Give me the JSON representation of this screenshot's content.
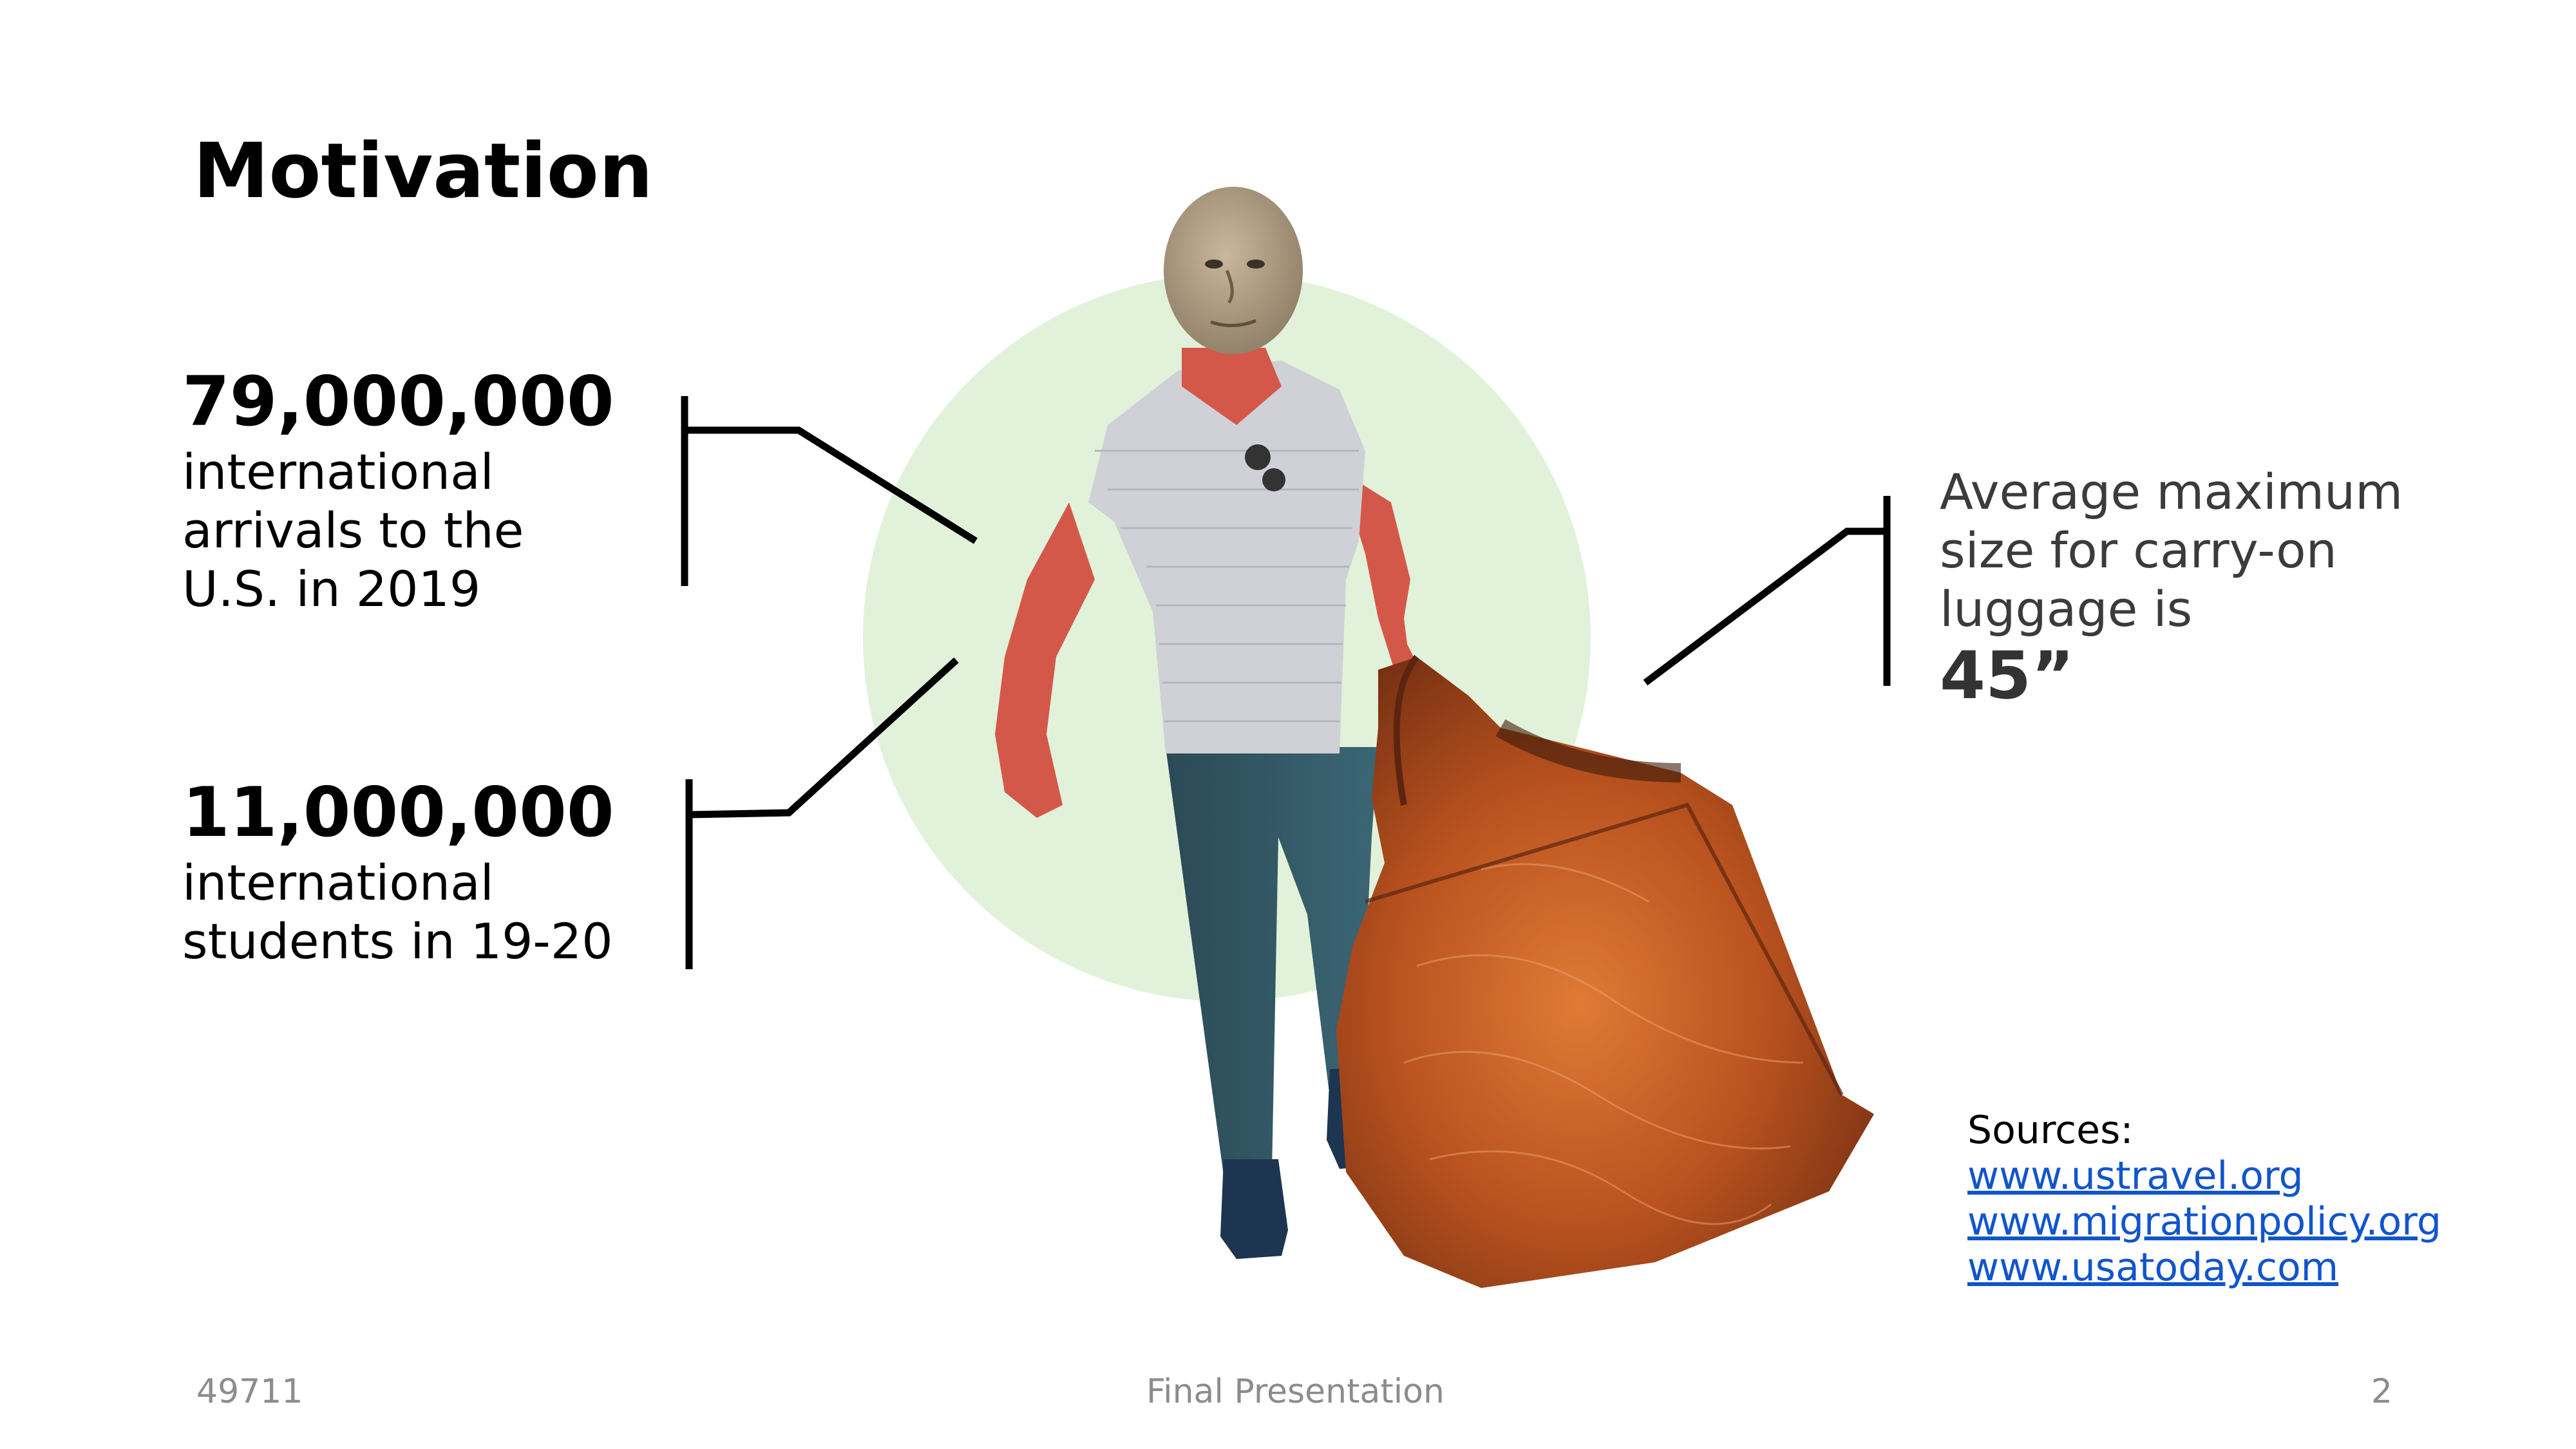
{
  "slide": {
    "title": "Motivation"
  },
  "stats": [
    {
      "number": "79,000,000",
      "lines": [
        "international",
        "arrivals to the",
        "U.S. in 2019"
      ]
    },
    {
      "number": "11,000,000",
      "lines": [
        "international",
        "students in 19-20"
      ]
    }
  ],
  "luggage": {
    "lines": [
      "Average maximum",
      "size for carry-on",
      "luggage is"
    ],
    "value": "45”"
  },
  "sources": {
    "label": "Sources:",
    "links": [
      "www.ustravel.org",
      "www.migrationpolicy.org",
      "www.usatoday.com"
    ]
  },
  "footer": {
    "left": "49711",
    "center": "Final Presentation",
    "right": "2"
  },
  "colors": {
    "circle": "#e2f2da",
    "link": "#1155cc",
    "footer_text": "#8c8c8c",
    "bag": "#a4481f"
  },
  "illustration": {
    "subject": "meme-man-carrying-oversized-bag-icon"
  }
}
